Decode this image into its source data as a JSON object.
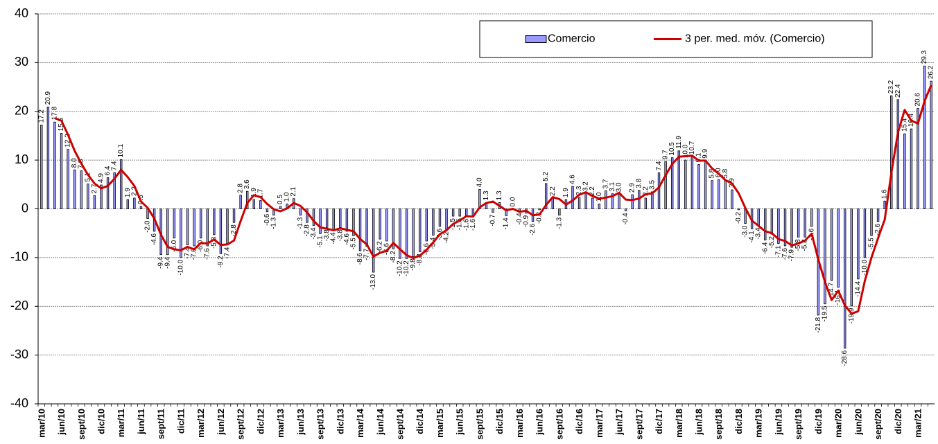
{
  "chart_data": {
    "type": "bar",
    "categories": [
      "mar/10",
      null,
      null,
      "jun/10",
      null,
      null,
      "sept/10",
      null,
      null,
      "dic/10",
      null,
      null,
      "mar/11",
      null,
      null,
      "jun/11",
      null,
      null,
      "sept/11",
      null,
      null,
      "dic/11",
      null,
      null,
      "mar/12",
      null,
      null,
      "jun/12",
      null,
      null,
      "sept/12",
      null,
      null,
      "dic/12",
      null,
      null,
      "mar/13",
      null,
      null,
      "jun/13",
      null,
      null,
      "sept/13",
      null,
      null,
      "dic/13",
      null,
      null,
      "mar/14",
      null,
      null,
      "jun/14",
      null,
      null,
      "sept/14",
      null,
      null,
      "dic/14",
      null,
      null,
      "mar/15",
      null,
      null,
      "jun/15",
      null,
      null,
      "sept/15",
      null,
      null,
      "dic/15",
      null,
      null,
      "mar/16",
      null,
      null,
      "jun/16",
      null,
      null,
      "sept/16",
      null,
      null,
      "dic/16",
      null,
      null,
      "mar/17",
      null,
      null,
      "jun/17",
      null,
      null,
      "sept/17",
      null,
      null,
      "dic/17",
      null,
      null,
      "mar/18",
      null,
      null,
      "jun/18",
      null,
      null,
      "sept/18",
      null,
      null,
      "dic/18",
      null,
      null,
      "mar/19",
      null,
      null,
      "jun/19",
      null,
      null,
      "sept/19",
      null,
      null,
      "dic/19",
      null,
      null,
      "mar/20",
      null,
      null,
      "jun/20",
      null,
      null,
      "sept/20",
      null,
      null,
      "dic/20",
      null,
      null,
      "mar/21",
      null,
      null
    ],
    "series": [
      {
        "name": "Comercio",
        "type": "bar",
        "color": "#9999ff",
        "values": [
          17.2,
          20.9,
          17.8,
          15.5,
          12.2,
          8.0,
          7.8,
          5.1,
          2.7,
          4.9,
          6.4,
          7.4,
          10.1,
          1.9,
          2.2,
          0.5,
          -2.0,
          -4.6,
          -9.4,
          -9.4,
          -6.0,
          -10.0,
          -7.4,
          -7.6,
          -6.0,
          -7.6,
          -5.3,
          -9.2,
          -7.4,
          -2.8,
          2.8,
          3.6,
          1.9,
          1.7,
          -0.6,
          -1.3,
          0.5,
          1.0,
          2.1,
          -1.3,
          -2.8,
          -3.4,
          -5.1,
          -3.8,
          -4.4,
          -3.8,
          -4.6,
          -5.5,
          -8.6,
          -7.7,
          -13.0,
          -6.2,
          -6.6,
          -8.2,
          -10.2,
          -10.2,
          -9.8,
          -8.8,
          -6.6,
          -5.4,
          -3.6,
          -4.2,
          -1.5,
          -1.5,
          -1.6,
          -1.6,
          4.0,
          1.3,
          -0.7,
          1.3,
          -1.4,
          0.0,
          -0.4,
          -0.9,
          -2.6,
          -0.2,
          5.2,
          2.2,
          -1.3,
          1.9,
          4.6,
          2.3,
          3.2,
          2.2,
          1.0,
          3.7,
          3.1,
          3.0,
          -0.4,
          2.9,
          3.8,
          2.2,
          3.5,
          7.4,
          9.7,
          10.5,
          11.9,
          10.0,
          10.7,
          9.1,
          9.9,
          5.8,
          6.0,
          5.8,
          3.9,
          -0.2,
          -3.0,
          -4.1,
          -3.4,
          -6.4,
          -5.2,
          -7.1,
          -7.6,
          -7.9,
          -5.8,
          -5.8,
          -3.6,
          -21.8,
          -19.5,
          -14.7,
          -16.1,
          -28.6,
          -19.9,
          -14.4,
          -10.0,
          -5.5,
          -2.6,
          1.6,
          23.2,
          22.4,
          15.4,
          16.4,
          20.6,
          29.3,
          26.2
        ],
        "value_labels": [
          "17.2",
          "20.9",
          "17.8",
          "15.5",
          "12.2",
          "8.0",
          "7.8",
          "5.1",
          "2.7",
          "4.9",
          "6.4",
          "7.4",
          "10.1",
          "1.9",
          "2.2",
          "0.5",
          "-2.0",
          "-4.6",
          "-9.4",
          "-9.4",
          "-6.0",
          "-10.0",
          "-7.4",
          "-7.6",
          "-6.0",
          "-7.6",
          "-5.3",
          "-9.2",
          "-7.4",
          "-2.8",
          "2.8",
          "3.6",
          "1.9",
          "1.7",
          "-0.6",
          "-1.3",
          "0.5",
          "1.0",
          "2.1",
          "-1.3",
          "-2.8",
          "-3.4",
          "-5.1",
          "-3.8",
          "-4.4",
          "-3.8",
          "-4.6",
          "-5.5",
          "-8.6",
          "-7.7",
          "-13.0",
          "-6.2",
          "-6.6",
          "-8.2",
          "-10.2",
          "-10.2",
          "-9.8",
          "-8.8",
          "-6.6",
          "-5.4",
          "-3.6",
          "-4.2",
          "-1.5",
          "-1.5",
          "-1.6",
          "-1.6",
          "4.0",
          "1.3",
          "-0.7",
          "1.3",
          "-1.4",
          "0.0",
          "-0.4",
          "-0.9",
          "-2.6",
          "-0.2",
          "5.2",
          "2.2",
          "-1.3",
          "1.9",
          "4.6",
          "2.3",
          "3.2",
          "2.2",
          "1.0",
          "3.7",
          "3.1",
          "3.0",
          "-0.4",
          "2.9",
          "3.8",
          "2.2",
          "3.5",
          "7.4",
          "9.7",
          "10.5",
          "11.9",
          "10.0",
          "10.7",
          "9.1",
          "9.9",
          "5.8",
          "6.0",
          "5.8",
          "3.9",
          "-0.2",
          "-3.0",
          "-4.1",
          "-3.4",
          "-6.4",
          "-5.2",
          "-7.1",
          "-7.6",
          "-7.9",
          "-5.8",
          "-5.8",
          "-3.6",
          "-21.8",
          "-19.5",
          "-14.7",
          "-16.1",
          "-28.6",
          "-19.9",
          "-14.4",
          "-10.0",
          "-5.5",
          "-2.6",
          "1.6",
          "23.2",
          "22.4",
          "15.4",
          "16.4",
          "20.6",
          "29.3",
          "26.2"
        ]
      },
      {
        "name": "3 per. med. móv. (Comercio)",
        "type": "line",
        "color": "#cc0000",
        "values": [
          null,
          null,
          18.6,
          18.1,
          15.2,
          11.9,
          9.3,
          7.0,
          5.2,
          4.2,
          4.7,
          6.2,
          8.0,
          6.5,
          4.7,
          1.5,
          0.2,
          -2.0,
          -5.3,
          -7.8,
          -8.3,
          -8.5,
          -7.8,
          -8.3,
          -7.0,
          -7.1,
          -6.3,
          -7.4,
          -7.3,
          -6.5,
          -2.5,
          1.2,
          2.8,
          2.4,
          1.0,
          -0.1,
          -0.5,
          0.1,
          1.2,
          0.6,
          -0.7,
          -2.5,
          -3.8,
          -4.1,
          -4.4,
          -4.0,
          -4.3,
          -4.6,
          -6.2,
          -7.3,
          -9.8,
          -9.0,
          -8.6,
          -7.0,
          -8.3,
          -9.5,
          -10.1,
          -9.6,
          -8.4,
          -6.9,
          -5.2,
          -4.4,
          -3.1,
          -2.4,
          -1.5,
          -1.6,
          0.3,
          1.2,
          1.5,
          0.6,
          -0.3,
          0.0,
          -0.6,
          -0.4,
          -1.3,
          -1.2,
          0.8,
          2.4,
          2.0,
          0.9,
          1.7,
          2.9,
          3.4,
          2.6,
          2.1,
          2.3,
          2.6,
          3.3,
          1.9,
          1.8,
          2.1,
          3.0,
          3.2,
          4.4,
          6.9,
          9.2,
          10.7,
          10.8,
          10.9,
          9.9,
          9.9,
          8.3,
          7.2,
          5.9,
          5.2,
          3.2,
          0.2,
          -2.4,
          -3.5,
          -4.6,
          -5.0,
          -6.2,
          -6.6,
          -7.5,
          -7.1,
          -6.5,
          -5.1,
          -10.4,
          -15.0,
          -18.7,
          -16.8,
          -19.8,
          -21.5,
          -21.0,
          -14.8,
          -10.0,
          -6.0,
          -2.2,
          7.4,
          15.7,
          20.3,
          18.1,
          17.5,
          22.1,
          25.4
        ]
      }
    ],
    "ylim": [
      -40,
      40
    ],
    "yticks": [
      -40,
      -30,
      -20,
      -10,
      0,
      10,
      20,
      30,
      40
    ],
    "grid": true,
    "legend": "top-right"
  }
}
